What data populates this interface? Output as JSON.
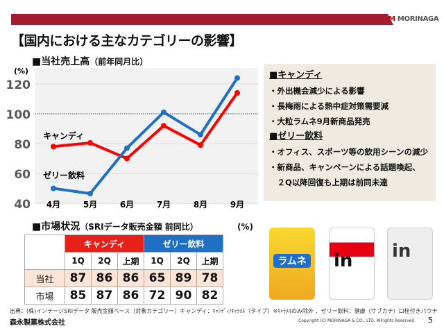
{
  "header": {
    "logo": "MORINAGA",
    "title": "【国内における主なカテゴリーの影響】"
  },
  "chart_section": {
    "title": "■当社売上高",
    "subtitle": "（前年同月比）"
  },
  "chart_data": {
    "type": "line",
    "ylabel": "(%)",
    "ylim": [
      40,
      125
    ],
    "yticks": [
      40,
      60,
      80,
      100,
      120
    ],
    "categories": [
      "4月",
      "5月",
      "6月",
      "7月",
      "8月",
      "9月"
    ],
    "reference_line": 100,
    "series": [
      {
        "name": "キャンディ",
        "color": "#ff0000",
        "values": [
          78,
          80.5,
          70,
          92,
          79,
          114
        ]
      },
      {
        "name": "ゼリー飲料",
        "color": "#1f6fc4",
        "values": [
          50,
          46.5,
          77,
          101,
          86,
          124
        ]
      }
    ]
  },
  "panel": {
    "sections": [
      {
        "heading": "■キャンディ",
        "items": [
          "・外出機会減少による影響",
          "・長梅雨による熱中症対策需要減",
          "・大粒ラムネ9月新商品発売"
        ]
      },
      {
        "heading": "■ゼリー飲料",
        "items": [
          "・オフィス、スポーツ等の飲用シーンの減少",
          "・新商品、キャンペーンによる話題喚起、",
          "　２Q以降回復も上期は前同未達"
        ]
      }
    ]
  },
  "table_section": {
    "title": "■市場状況",
    "subtitle": "（SRIデータ販売金額  前同比）",
    "unit": "(%)",
    "groups": [
      "キャンディ",
      "ゼリー飲料"
    ],
    "columns": [
      "1Q",
      "2Q",
      "上期",
      "1Q",
      "2Q",
      "上期"
    ],
    "rows": [
      {
        "label": "当社",
        "values": [
          "87",
          "86",
          "86",
          "65",
          "89",
          "78"
        ]
      },
      {
        "label": "市場",
        "values": [
          "85",
          "87",
          "86",
          "72",
          "90",
          "82"
        ]
      }
    ]
  },
  "products": [
    {
      "name": "ラムネ"
    },
    {
      "name": "in"
    },
    {
      "name": "in"
    }
  ],
  "footer": {
    "source": "出典：(株)インテージSRIデータ 販売金額ベース（対象カテゴリー）キャンディ：ｷｬﾝﾃﾞｨ/ｷｬﾗﾒﾙ（タイプ）※ｷｬﾗﾒﾙのみ除外 、ゼリー飲料：健康（サブカテ）口栓付きパウチ",
    "company": "森永製菓株式会社",
    "copyright": "Copyright (C) MORINAGA & CO., LTD. Allrights Reserved.",
    "page": "5"
  }
}
